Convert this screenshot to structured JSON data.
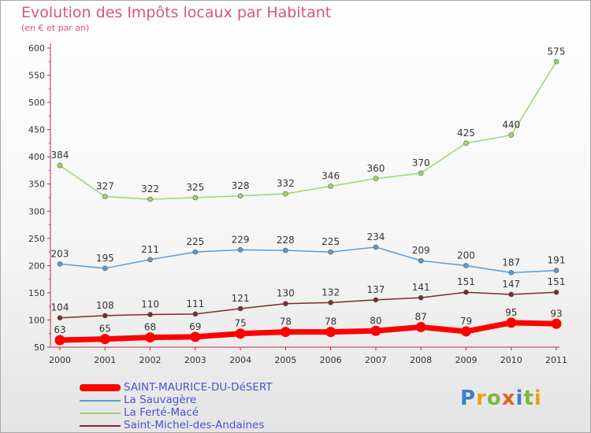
{
  "title": "Evolution des Impôts locaux par Habitant",
  "subtitle": "(en € et par an)",
  "logo": "Proxiti",
  "colors": {
    "title": "#d9547f",
    "axis": "#c8234a",
    "legend_text": "#4a55cc",
    "saint_maurice": "#ff0000",
    "la_sauvagere": "#5b9bd5",
    "la_ferte_mace": "#9ed86a",
    "saint_michel": "#7d2b2b"
  },
  "chart_data": {
    "type": "line",
    "x": [
      "2000",
      "2001",
      "2002",
      "2003",
      "2004",
      "2005",
      "2006",
      "2007",
      "2008",
      "2009",
      "2010",
      "2011"
    ],
    "ylim": [
      50,
      600
    ],
    "yticks": [
      "50",
      "100",
      "150",
      "200",
      "250",
      "300",
      "350",
      "400",
      "450",
      "500",
      "550",
      "600"
    ],
    "grid": false,
    "legend_position": "bottom-left",
    "series": [
      {
        "name": "SAINT-MAURICE-DU-DéSERT",
        "color": "#ff0000",
        "values": [
          63,
          65,
          68,
          69,
          75,
          78,
          78,
          80,
          87,
          79,
          95,
          93
        ],
        "labels": [
          "63",
          "65",
          "68",
          "69",
          "75",
          "78",
          "78",
          "80",
          "87",
          "79",
          "95",
          "93"
        ]
      },
      {
        "name": "La Sauvagère",
        "color": "#5b9bd5",
        "values": [
          203,
          195,
          211,
          225,
          229,
          228,
          225,
          234,
          209,
          200,
          187,
          191
        ],
        "labels": [
          "203",
          "195",
          "211",
          "225",
          "229",
          "228",
          "225",
          "234",
          "209",
          "200",
          "187",
          "191"
        ]
      },
      {
        "name": "La Ferté-Macé",
        "color": "#9ed86a",
        "values": [
          384,
          327,
          322,
          325,
          328,
          332,
          346,
          360,
          370,
          425,
          440,
          575
        ],
        "labels": [
          "384",
          "327",
          "322",
          "325",
          "328",
          "332",
          "346",
          "360",
          "370",
          "425",
          "440",
          "575"
        ]
      },
      {
        "name": "Saint-Michel-des-Andaines",
        "color": "#7d2b2b",
        "values": [
          104,
          108,
          110,
          111,
          121,
          130,
          132,
          137,
          141,
          151,
          147,
          151
        ],
        "labels": [
          "104",
          "108",
          "110",
          "111",
          "121",
          "130",
          "132",
          "137",
          "141",
          "151",
          "147",
          "151"
        ]
      }
    ]
  }
}
